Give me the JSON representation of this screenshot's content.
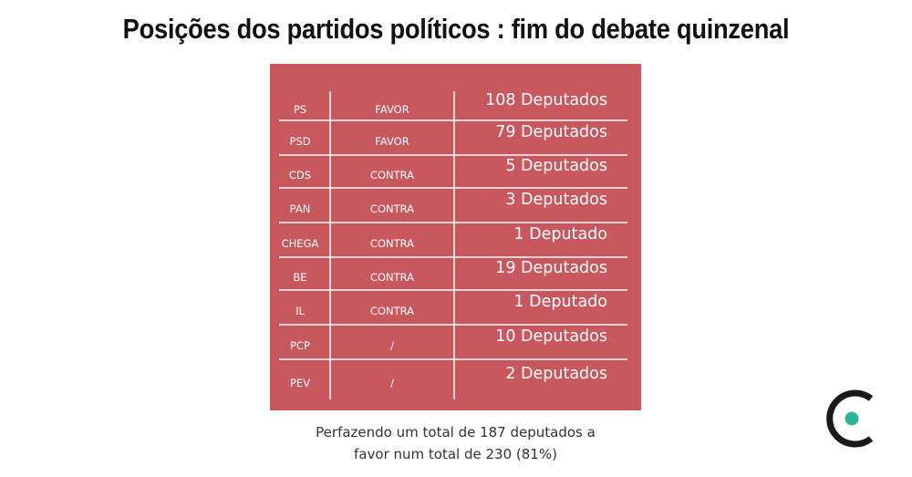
{
  "title": "Posições dos partidos políticos : fim do debate quinzenal",
  "rows": [
    {
      "party": "PS",
      "position": "FAVOR",
      "deputies": "108 Deputados"
    },
    {
      "party": "PSD",
      "position": "FAVOR",
      "deputies": "79 Deputados"
    },
    {
      "party": "CDS",
      "position": "CONTRA",
      "deputies": "5 Deputados"
    },
    {
      "party": "PAN",
      "position": "CONTRA",
      "deputies": "3 Deputados"
    },
    {
      "party": "CHEGA",
      "position": "CONTRA",
      "deputies": "1 Deputado"
    },
    {
      "party": "BE",
      "position": "CONTRA",
      "deputies": "19 Deputados"
    },
    {
      "party": "IL",
      "position": "CONTRA",
      "deputies": "1 Deputado"
    },
    {
      "party": "PCP",
      "position": "/",
      "deputies": "10 Deputados"
    },
    {
      "party": "PEV",
      "position": "/",
      "deputies": "2 Deputados"
    }
  ],
  "caption": {
    "line1": "Perfazendo um total de 187 deputados a",
    "line2": "favor num total de 230 (81%)"
  },
  "colors": {
    "table_background": "#c9585e",
    "grid_lines": "#ffffff",
    "logo_ring": "#1a1a1a",
    "logo_dot": "#2bb69a"
  },
  "logo": {
    "icon": "c-logo-icon"
  }
}
